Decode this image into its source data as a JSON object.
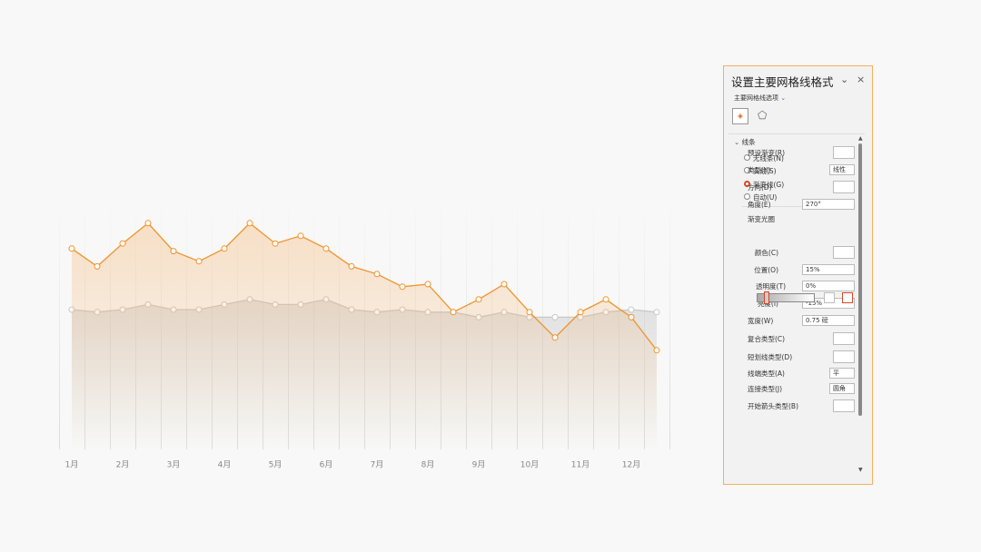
{
  "chart_data": {
    "type": "line",
    "categories": [
      "1月",
      null,
      "2月",
      null,
      "3月",
      null,
      "4月",
      null,
      "5月",
      null,
      "6月",
      null,
      "7月",
      null,
      "8月",
      null,
      "9月",
      null,
      "10月",
      null,
      "11月",
      null,
      "12月",
      null
    ],
    "series": [
      {
        "color": "#f0932b",
        "values": [
          79,
          72,
          81,
          89,
          78,
          74,
          79,
          89,
          81,
          84,
          79,
          72,
          69,
          64,
          65,
          54,
          59,
          65,
          54,
          44,
          54,
          59,
          52,
          39
        ]
      },
      {
        "color": "#c8c8c8",
        "values": [
          55,
          54,
          55,
          57,
          55,
          55,
          57,
          59,
          57,
          57,
          59,
          55,
          54,
          55,
          54,
          54,
          52,
          54,
          52,
          52,
          52,
          54,
          55,
          54
        ]
      }
    ],
    "ylim": [
      0,
      100
    ]
  },
  "panel": {
    "title": "设置主要网格线格式",
    "subtitle": "主要网格线选项",
    "section": "线条",
    "options": [
      "无线条(N)",
      "实线(S)",
      "渐变线(G)",
      "自动(U)"
    ],
    "rows": [
      {
        "label": "预设渐变(R)"
      },
      {
        "label": "类型(Y)",
        "value": "线性"
      },
      {
        "label": "方向(D)"
      },
      {
        "label": "角度(E)",
        "value": "270°"
      },
      {
        "label": "渐变光圈"
      },
      {
        "label": "颜色(C)"
      },
      {
        "label": "位置(O)",
        "value": "15%"
      },
      {
        "label": "透明度(T)",
        "value": "0%"
      },
      {
        "label": "亮度(I)",
        "value": "-15%"
      },
      {
        "label": "宽度(W)",
        "value": "0.75 磅"
      },
      {
        "label": "复合类型(C)"
      },
      {
        "label": "短划线类型(D)"
      },
      {
        "label": "线端类型(A)",
        "value": "平"
      },
      {
        "label": "连接类型(J)",
        "value": "圆角"
      },
      {
        "label": "开始箭头类型(B)"
      }
    ]
  }
}
